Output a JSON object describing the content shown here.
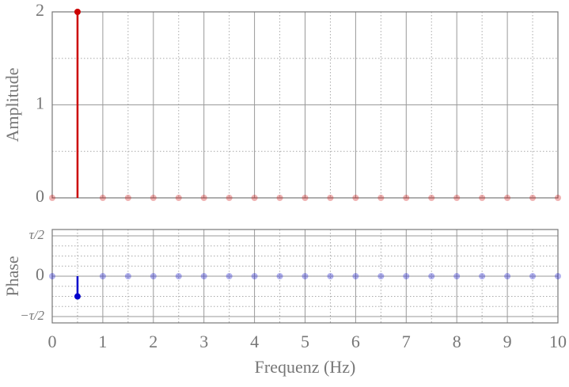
{
  "chart_data": [
    {
      "type": "stem",
      "ylabel": "Amplitude",
      "color": "#cc0000",
      "x": [
        0,
        0.5,
        1,
        1.5,
        2,
        2.5,
        3,
        3.5,
        4,
        4.5,
        5,
        5.5,
        6,
        6.5,
        7,
        7.5,
        8,
        8.5,
        9,
        9.5,
        10
      ],
      "values": [
        0,
        2,
        0,
        0,
        0,
        0,
        0,
        0,
        0,
        0,
        0,
        0,
        0,
        0,
        0,
        0,
        0,
        0,
        0,
        0,
        0
      ],
      "xlim": [
        0,
        10
      ],
      "xticks": [
        0,
        1,
        2,
        3,
        4,
        5,
        6,
        7,
        8,
        9,
        10
      ],
      "minor_xticks": [
        0.5,
        1.5,
        2.5,
        3.5,
        4.5,
        5.5,
        6.5,
        7.5,
        8.5,
        9.5
      ],
      "ylim": [
        0,
        2
      ],
      "yticks": [
        0,
        1,
        2
      ],
      "minor_yticks": [
        0.5,
        1.5
      ],
      "grid": true
    },
    {
      "type": "stem",
      "ylabel": "Phase",
      "xlabel": "Frequenz (Hz)",
      "color": "#0000cc",
      "x": [
        0,
        0.5,
        1,
        1.5,
        2,
        2.5,
        3,
        3.5,
        4,
        4.5,
        5,
        5.5,
        6,
        6.5,
        7,
        7.5,
        8,
        8.5,
        9,
        9.5,
        10
      ],
      "values": [
        0,
        -1.5708,
        0,
        0,
        0,
        0,
        0,
        0,
        0,
        0,
        0,
        0,
        0,
        0,
        0,
        0,
        0,
        0,
        0,
        0,
        0
      ],
      "xlim": [
        0,
        10
      ],
      "xticks": [
        0,
        1,
        2,
        3,
        4,
        5,
        6,
        7,
        8,
        9,
        10
      ],
      "minor_xticks": [
        0.5,
        1.5,
        2.5,
        3.5,
        4.5,
        5.5,
        6.5,
        7.5,
        8.5,
        9.5
      ],
      "ylim": [
        -3.63,
        3.63
      ],
      "yticks": [
        {
          "value": -3.1416,
          "label": "−τ/2"
        },
        0,
        {
          "value": 3.1416,
          "label": "τ/2"
        }
      ],
      "minor_yticks": [
        -2.3562,
        -1.5708,
        -0.7854,
        0.7854,
        1.5708,
        2.3562
      ],
      "grid": true
    }
  ]
}
